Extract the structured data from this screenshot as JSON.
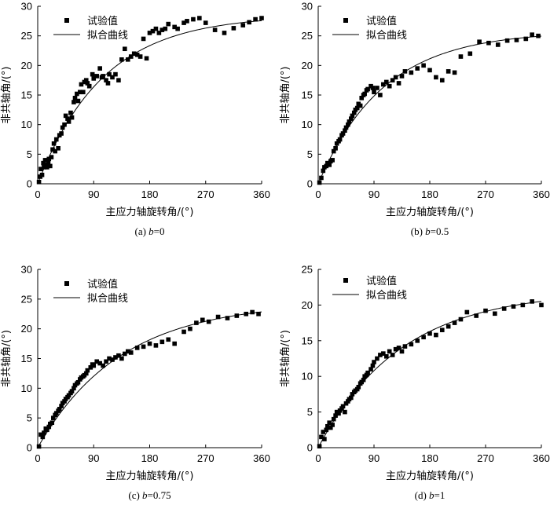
{
  "chart_data": [
    {
      "type": "scatter",
      "caption": "(a) b=0",
      "caption_prefix": "(a) ",
      "caption_var": "b",
      "caption_value": "=0",
      "xlabel": "主应力轴旋转角/(°)",
      "ylabel": "非共轴角/(°)",
      "xlim": [
        0,
        360
      ],
      "ylim": [
        0,
        30
      ],
      "xticks": [
        0,
        90,
        180,
        270,
        360
      ],
      "yticks": [
        0,
        5,
        10,
        15,
        20,
        25,
        30
      ],
      "legend": [
        "试验值",
        "拟合曲线"
      ],
      "fit": {
        "amplitude": 28.5,
        "rate": 0.0095
      },
      "series": [
        {
          "name": "试验值",
          "x": [
            2,
            4,
            5,
            7,
            9,
            10,
            12,
            13,
            15,
            17,
            18,
            20,
            22,
            24,
            26,
            28,
            30,
            33,
            35,
            38,
            40,
            43,
            45,
            48,
            50,
            53,
            55,
            58,
            60,
            63,
            65,
            68,
            70,
            73,
            75,
            78,
            80,
            83,
            88,
            90,
            95,
            100,
            103,
            105,
            110,
            113,
            115,
            120,
            125,
            130,
            135,
            140,
            145,
            150,
            155,
            160,
            165,
            170,
            175,
            180,
            185,
            190,
            195,
            200,
            205,
            210,
            220,
            225,
            235,
            240,
            250,
            260,
            270,
            285,
            300,
            315,
            330,
            340,
            350,
            360
          ],
          "y": [
            0.3,
            1.2,
            2.5,
            1.5,
            3.5,
            2.8,
            4.0,
            3.2,
            2.8,
            3.5,
            4.2,
            3.0,
            4.5,
            5.8,
            6.8,
            5.5,
            7.5,
            6.0,
            8.2,
            8.5,
            9.5,
            10.0,
            11.5,
            11.0,
            10.5,
            12.0,
            11.2,
            13.8,
            14.5,
            15.2,
            14.0,
            15.5,
            16.8,
            15.5,
            17.2,
            17.5,
            17.0,
            16.5,
            18.5,
            17.8,
            18.2,
            19.5,
            18.0,
            18.2,
            17.5,
            17.0,
            18.5,
            18.0,
            18.5,
            17.5,
            21.0,
            22.8,
            21.0,
            21.5,
            22.0,
            21.8,
            21.5,
            24.5,
            21.2,
            25.5,
            25.8,
            26.2,
            25.5,
            26.0,
            26.2,
            27.0,
            26.5,
            26.2,
            27.2,
            27.5,
            27.8,
            28.0,
            27.2,
            26.0,
            25.5,
            26.3,
            26.8,
            27.3,
            27.8,
            28.0
          ]
        }
      ]
    },
    {
      "type": "scatter",
      "caption": "(b) b=0.5",
      "caption_prefix": "(b) ",
      "caption_var": "b",
      "caption_value": "=0.5",
      "xlabel": "主应力轴旋转角/(°)",
      "ylabel": "非共轴角/(°)",
      "xlim": [
        0,
        360
      ],
      "ylim": [
        0,
        30
      ],
      "xticks": [
        0,
        90,
        180,
        270,
        360
      ],
      "yticks": [
        0,
        5,
        10,
        15,
        20,
        25,
        30
      ],
      "legend": [
        "试验值",
        "拟合曲线"
      ],
      "fit": {
        "amplitude": 25.8,
        "rate": 0.0095
      },
      "series": [
        {
          "name": "试验值",
          "x": [
            2,
            5,
            8,
            10,
            13,
            15,
            18,
            20,
            23,
            25,
            28,
            30,
            33,
            35,
            38,
            40,
            43,
            45,
            48,
            50,
            53,
            55,
            58,
            60,
            63,
            65,
            68,
            70,
            73,
            75,
            78,
            80,
            85,
            88,
            90,
            95,
            100,
            105,
            110,
            115,
            120,
            125,
            130,
            135,
            140,
            150,
            160,
            170,
            180,
            190,
            200,
            210,
            220,
            230,
            245,
            260,
            275,
            290,
            305,
            320,
            335,
            345,
            355
          ],
          "y": [
            0.2,
            1.0,
            2.2,
            2.8,
            3.0,
            3.5,
            3.2,
            3.8,
            4.0,
            5.5,
            6.0,
            6.8,
            7.2,
            7.5,
            8.2,
            8.5,
            9.0,
            9.5,
            10.0,
            10.5,
            11.0,
            11.5,
            12.0,
            12.5,
            12.8,
            13.5,
            13.2,
            14.5,
            15.0,
            15.2,
            15.8,
            16.0,
            16.5,
            16.2,
            15.5,
            16.2,
            15.0,
            16.8,
            17.2,
            16.5,
            17.5,
            18.0,
            17.0,
            18.2,
            19.0,
            18.8,
            19.5,
            20.0,
            19.2,
            18.0,
            17.5,
            19.0,
            18.8,
            21.5,
            22.0,
            24.0,
            23.8,
            23.5,
            24.2,
            24.3,
            24.5,
            25.2,
            25.0
          ]
        }
      ]
    },
    {
      "type": "scatter",
      "caption": "(c) b=0.75",
      "caption_prefix": "(c) ",
      "caption_var": "b",
      "caption_value": "=0.75",
      "xlabel": "主应力轴旋转角/(°)",
      "ylabel": "非共轴角/(°)",
      "xlim": [
        0,
        360
      ],
      "ylim": [
        0,
        30
      ],
      "xticks": [
        0,
        90,
        180,
        270,
        360
      ],
      "yticks": [
        0,
        5,
        10,
        15,
        20,
        25,
        30
      ],
      "legend": [
        "试验值",
        "拟合曲线"
      ],
      "fit": {
        "amplitude": 24.5,
        "rate": 0.0075
      },
      "series": [
        {
          "name": "试验值",
          "x": [
            2,
            5,
            8,
            10,
            13,
            15,
            18,
            20,
            23,
            25,
            28,
            30,
            33,
            35,
            38,
            40,
            43,
            45,
            48,
            50,
            53,
            55,
            58,
            60,
            63,
            65,
            68,
            70,
            73,
            75,
            78,
            80,
            85,
            88,
            90,
            95,
            100,
            105,
            110,
            115,
            120,
            125,
            130,
            135,
            140,
            145,
            150,
            160,
            170,
            180,
            190,
            200,
            210,
            220,
            235,
            245,
            255,
            265,
            275,
            290,
            305,
            320,
            335,
            345,
            355
          ],
          "y": [
            0.2,
            2.2,
            1.8,
            2.5,
            3.2,
            3.0,
            3.5,
            4.0,
            4.2,
            5.0,
            5.5,
            5.8,
            6.2,
            6.5,
            7.0,
            7.5,
            7.8,
            8.2,
            8.5,
            8.8,
            9.2,
            9.5,
            10.0,
            10.5,
            10.8,
            11.0,
            11.5,
            11.8,
            12.0,
            12.2,
            12.5,
            13.0,
            13.5,
            14.0,
            13.8,
            14.5,
            14.2,
            13.8,
            14.5,
            15.0,
            14.8,
            15.2,
            15.5,
            15.0,
            15.8,
            16.2,
            16.0,
            16.8,
            17.0,
            17.5,
            17.2,
            17.8,
            18.2,
            17.5,
            19.5,
            20.0,
            21.0,
            21.5,
            21.2,
            22.0,
            21.8,
            22.2,
            22.5,
            22.8,
            22.5
          ]
        }
      ]
    },
    {
      "type": "scatter",
      "caption": "(d) b=1",
      "caption_prefix": "(d) ",
      "caption_var": "b",
      "caption_value": "=1",
      "xlabel": "主应力轴旋转角/(°)",
      "ylabel": "非共轴角/(°)",
      "xlim": [
        0,
        360
      ],
      "ylim": [
        0,
        25
      ],
      "xticks": [
        0,
        90,
        180,
        270,
        360
      ],
      "yticks": [
        0,
        5,
        10,
        15,
        20,
        25
      ],
      "legend": [
        "试验值",
        "拟合曲线"
      ],
      "fit": {
        "amplitude": 22.0,
        "rate": 0.0075
      },
      "series": [
        {
          "name": "试验值",
          "x": [
            2,
            5,
            8,
            10,
            13,
            15,
            18,
            20,
            23,
            25,
            28,
            30,
            33,
            35,
            38,
            40,
            43,
            45,
            48,
            50,
            53,
            55,
            58,
            60,
            63,
            65,
            68,
            70,
            73,
            75,
            78,
            80,
            85,
            88,
            90,
            95,
            100,
            105,
            110,
            115,
            120,
            125,
            130,
            135,
            140,
            150,
            160,
            170,
            180,
            190,
            200,
            210,
            220,
            230,
            240,
            255,
            270,
            285,
            300,
            315,
            330,
            345,
            360
          ],
          "y": [
            0.2,
            1.5,
            2.2,
            1.2,
            2.5,
            3.0,
            3.5,
            2.8,
            3.2,
            4.0,
            4.5,
            5.0,
            4.8,
            5.2,
            5.5,
            5.8,
            5.0,
            6.2,
            6.5,
            6.8,
            7.0,
            7.5,
            7.8,
            8.0,
            8.2,
            8.5,
            9.0,
            9.2,
            9.5,
            10.0,
            10.2,
            10.5,
            11.0,
            11.5,
            12.0,
            12.5,
            13.0,
            13.2,
            12.8,
            13.5,
            13.0,
            13.8,
            14.0,
            13.5,
            14.2,
            14.5,
            15.0,
            15.5,
            16.0,
            15.8,
            16.5,
            17.0,
            17.5,
            18.0,
            19.0,
            18.5,
            19.2,
            18.8,
            19.5,
            19.8,
            20.0,
            20.5,
            20.0
          ]
        }
      ]
    }
  ]
}
